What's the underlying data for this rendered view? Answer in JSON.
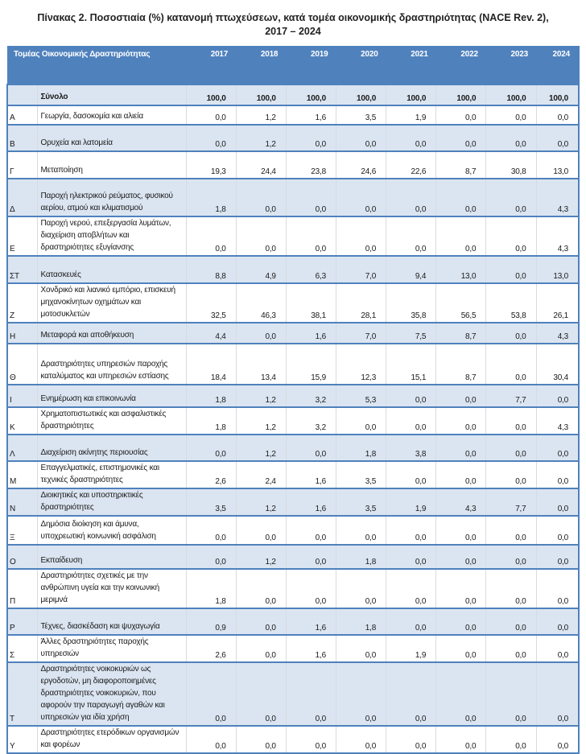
{
  "title_line1": "Πίνακας 2. Ποσοστιαία (%) κατανομή πτωχεύσεων, κατά τομέα οικονομικής δραστηριότητας (NACE Rev. 2),",
  "title_line2": "2017 – 2024",
  "table": {
    "header_label": "Τομέας Οικονομικής Δραστηριότητας",
    "years": [
      "2017",
      "2018",
      "2019",
      "2020",
      "2021",
      "2022",
      "2023",
      "2024"
    ],
    "rows": [
      {
        "code": "",
        "label": "Σύνολο",
        "values": [
          "100,0",
          "100,0",
          "100,0",
          "100,0",
          "100,0",
          "100,0",
          "100,0",
          "100,0"
        ]
      },
      {
        "code": "Α",
        "label": "Γεωργία, δασοκομία και αλιεία",
        "values": [
          "0,0",
          "1,2",
          "1,6",
          "3,5",
          "1,9",
          "0,0",
          "0,0",
          "0,0"
        ]
      },
      {
        "code": "Β",
        "label": "Ορυχεία και λατομεία",
        "values": [
          "0,0",
          "1,2",
          "0,0",
          "0,0",
          "0,0",
          "0,0",
          "0,0",
          "0,0"
        ]
      },
      {
        "code": "Γ",
        "label": "Μεταποίηση",
        "values": [
          "19,3",
          "24,4",
          "23,8",
          "24,6",
          "22,6",
          "8,7",
          "30,8",
          "13,0"
        ]
      },
      {
        "code": "Δ",
        "label": "Παροχή ηλεκτρικού ρεύματος, φυσικού αερίου, ατμού και κλιματισμού",
        "values": [
          "1,8",
          "0,0",
          "0,0",
          "0,0",
          "0,0",
          "0,0",
          "0,0",
          "4,3"
        ]
      },
      {
        "code": "Ε",
        "label": "Παροχή νερού, επεξεργασία λυμάτων, διαχείριση αποβλήτων και δραστηριότητες εξυγίανσης",
        "values": [
          "0,0",
          "0,0",
          "0,0",
          "0,0",
          "0,0",
          "0,0",
          "0,0",
          "4,3"
        ]
      },
      {
        "code": "ΣΤ",
        "label": "Κατασκευές",
        "values": [
          "8,8",
          "4,9",
          "6,3",
          "7,0",
          "9,4",
          "13,0",
          "0,0",
          "13,0"
        ]
      },
      {
        "code": "Ζ",
        "label": "Χονδρικό και λιανικό εμπόριο, επισκευή μηχανοκίνητων οχημάτων και μοτοσυκλετών",
        "values": [
          "32,5",
          "46,3",
          "38,1",
          "28,1",
          "35,8",
          "56,5",
          "53,8",
          "26,1"
        ]
      },
      {
        "code": "Η",
        "label": "Μεταφορά και αποθήκευση",
        "values": [
          "4,4",
          "0,0",
          "1,6",
          "7,0",
          "7,5",
          "8,7",
          "0,0",
          "4,3"
        ]
      },
      {
        "code": "Θ",
        "label": "Δραστηριότητες υπηρεσιών παροχής καταλύματος και υπηρεσιών εστίασης",
        "values": [
          "18,4",
          "13,4",
          "15,9",
          "12,3",
          "15,1",
          "8,7",
          "0,0",
          "30,4"
        ]
      },
      {
        "code": "Ι",
        "label": "Ενημέρωση και επικοινωνία",
        "values": [
          "1,8",
          "1,2",
          "3,2",
          "5,3",
          "0,0",
          "0,0",
          "7,7",
          "0,0"
        ]
      },
      {
        "code": "Κ",
        "label": "Χρηματοπιστωτικές και ασφαλιστικές δραστηριότητες",
        "values": [
          "1,8",
          "1,2",
          "3,2",
          "0,0",
          "0,0",
          "0,0",
          "0,0",
          "4,3"
        ]
      },
      {
        "code": "Λ",
        "label": "Διαχείριση ακίνητης περιουσίας",
        "values": [
          "0,0",
          "1,2",
          "0,0",
          "1,8",
          "3,8",
          "0,0",
          "0,0",
          "0,0"
        ]
      },
      {
        "code": "Μ",
        "label": "Επαγγελματικές, επιστημονικές και τεχνικές δραστηριότητες",
        "values": [
          "2,6",
          "2,4",
          "1,6",
          "3,5",
          "0,0",
          "0,0",
          "0,0",
          "0,0"
        ]
      },
      {
        "code": "Ν",
        "label": "Διοικητικές και υποστηρικτικές δραστηριότητες",
        "values": [
          "3,5",
          "1,2",
          "1,6",
          "3,5",
          "1,9",
          "4,3",
          "7,7",
          "0,0"
        ]
      },
      {
        "code": "Ξ",
        "label": "Δημόσια διοίκηση και άμυνα, υποχρεωτική κοινωνική ασφάλιση",
        "values": [
          "0,0",
          "0,0",
          "0,0",
          "0,0",
          "0,0",
          "0,0",
          "0,0",
          "0,0"
        ]
      },
      {
        "code": "Ο",
        "label": "Εκπαίδευση",
        "values": [
          "0,0",
          "1,2",
          "0,0",
          "1,8",
          "0,0",
          "0,0",
          "0,0",
          "0,0"
        ]
      },
      {
        "code": "Π",
        "label": "Δραστηριότητες σχετικές με την ανθρώπινη υγεία και την κοινωνική μεριμνά",
        "values": [
          "1,8",
          "0,0",
          "0,0",
          "0,0",
          "0,0",
          "0,0",
          "0,0",
          "0,0"
        ]
      },
      {
        "code": "Ρ",
        "label": "Τέχνες, διασκέδαση και ψυχαγωγία",
        "values": [
          "0,9",
          "0,0",
          "1,6",
          "1,8",
          "0,0",
          "0,0",
          "0,0",
          "0,0"
        ]
      },
      {
        "code": "Σ",
        "label": "Άλλες δραστηριότητες παροχής υπηρεσιών",
        "values": [
          "2,6",
          "0,0",
          "1,6",
          "0,0",
          "1,9",
          "0,0",
          "0,0",
          "0,0"
        ]
      },
      {
        "code": "Τ",
        "label": "Δραστηριότητες νοικοκυριών ως εργοδοτών, μη διαφοροποιημένες δραστηριότητες νοικοκυριών, που αφορούν την παραγωγή αγαθών και υπηρεσιών για ιδία χρήση",
        "values": [
          "0,0",
          "0,0",
          "0,0",
          "0,0",
          "0,0",
          "0,0",
          "0,0",
          "0,0"
        ]
      },
      {
        "code": "Υ",
        "label": "Δραστηριότητες ετερόδικων οργανισμών και φορέων",
        "values": [
          "0,0",
          "0,0",
          "0,0",
          "0,0",
          "0,0",
          "0,0",
          "0,0",
          "0,0"
        ]
      }
    ]
  }
}
